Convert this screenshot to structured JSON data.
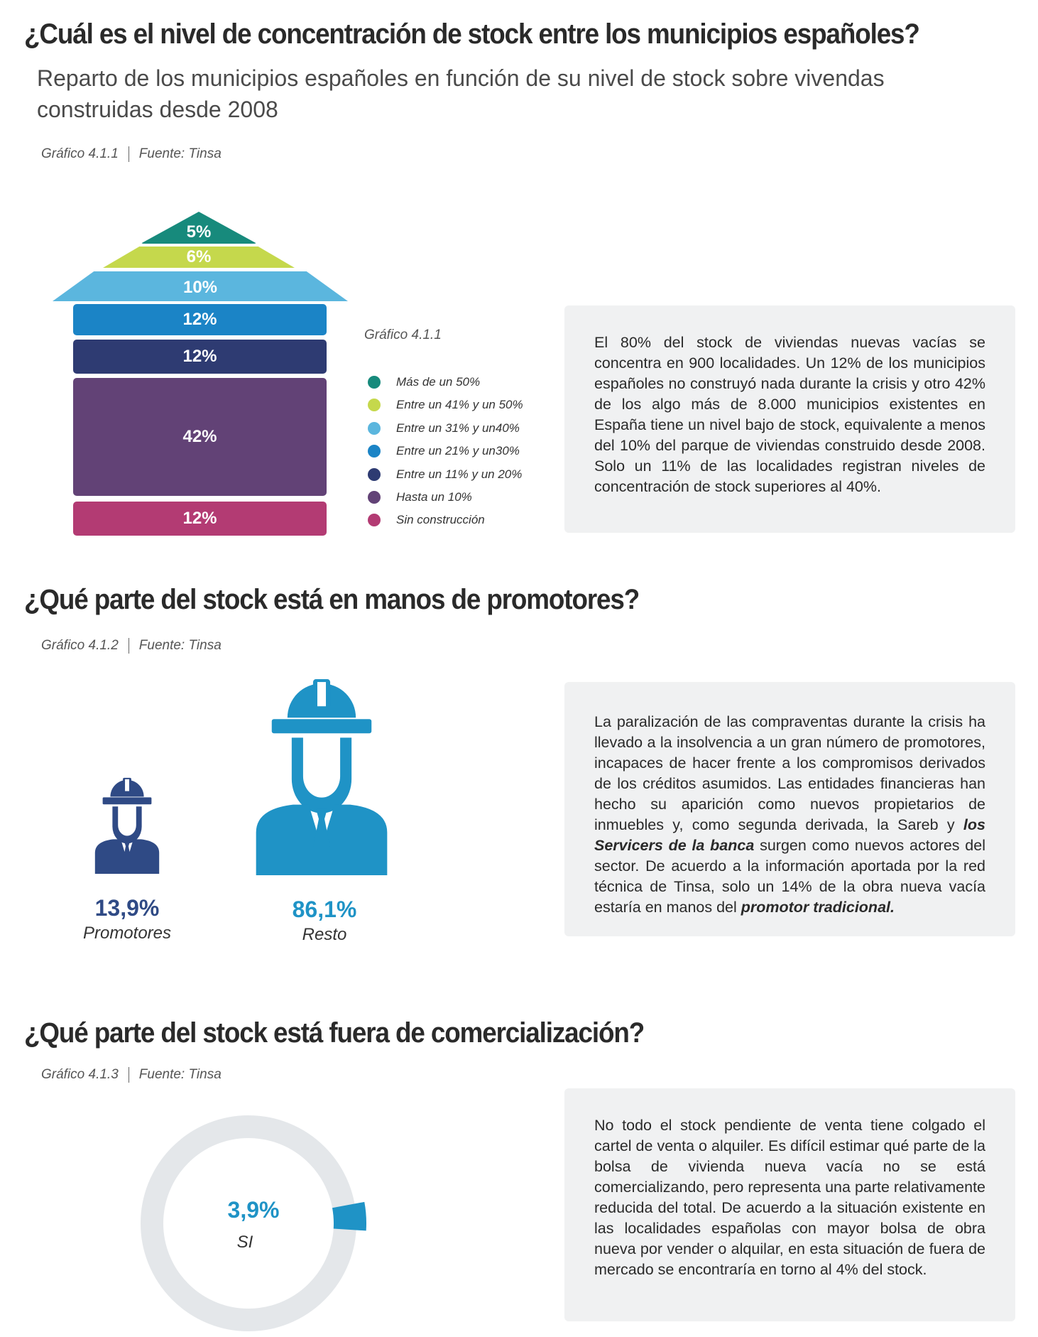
{
  "section1": {
    "title": "¿Cuál es el nivel de concentración de stock entre los municipios españoles?",
    "subtitle": "Reparto de los municipios españoles en función de su nivel de stock sobre vivendas construidas desde 2008",
    "source_chart": "Gráfico 4.1.1",
    "source_label": "Fuente: Tinsa",
    "legend_title": "Gráfico 4.1.1",
    "body": "El 80% del stock de viviendas nuevas vacías se concentra en 900 localidades. Un 12% de los municipios españoles no construyó nada durante la crisis y otro 42% de los algo más de 8.000 municipios existentes en España tiene un nivel bajo de stock, equivalente a menos del 10% del parque de viviendas construido desde 2008. Solo un 11% de las localidades registran niveles de concentración de stock superiores al 40%."
  },
  "section2": {
    "title": "¿Qué parte del stock está en manos de promotores?",
    "source_chart": "Gráfico 4.1.2",
    "source_label": "Fuente: Tinsa",
    "body_1": "La paralización de las compraventas durante la crisis ha llevado a la insolvencia a un gran número de promotores, incapaces de hacer frente a los compromisos derivados de los créditos asumidos. Las entidades financieras han hecho su aparición como nuevos propietarios de inmuebles y, como segunda derivada, la Sareb y ",
    "body_em_1": "los Servicers de la banca",
    "body_2": " surgen como nuevos actores del sector. De acuerdo a la información aportada por la red técnica de Tinsa, solo un 14% de la obra nueva vacía estaría en manos del ",
    "body_em_2": "promotor tradicional."
  },
  "section3": {
    "title": "¿Qué parte del stock está fuera de comercialización?",
    "source_chart": "Gráfico 4.1.3",
    "source_label": "Fuente: Tinsa",
    "body": "No todo el stock pendiente de venta tiene colgado el cartel de venta o alquiler. Es difícil estimar qué parte de la bolsa de vivienda nueva vacía no se está comercializando, pero representa una parte relativamente reducida del total. De acuerdo a la situación existente en las localidades españolas con mayor bolsa de obra nueva por vender o alquilar, en esta situación de fuera de mercado se encontraría en torno al 4% del stock."
  },
  "colors": {
    "teal": "#178a7c",
    "lime": "#c5d84c",
    "light_blue": "#5bb6de",
    "blue": "#1b84c6",
    "navy": "#2e3b72",
    "purple": "#624276",
    "magenta": "#b33b73",
    "promoter_navy": "#2f4a85",
    "resto_blue": "#1f93c6",
    "ring_grey": "#e4e7ea"
  },
  "chart_data": [
    {
      "type": "bar",
      "title": "",
      "categories": [
        "Más de un 50%",
        "Entre  un 41% y un 50%",
        "Entre  un 31% y un40%",
        "Entre  un 21% y un30%",
        "Entre  un 11% y un 20%",
        "Hasta un 10%",
        "Sin construcción"
      ],
      "values": [
        5,
        6,
        10,
        12,
        12,
        42,
        12
      ],
      "labels": [
        "5%",
        "6%",
        "10%",
        "12%",
        "12%",
        "42%",
        "12%"
      ],
      "colors": [
        "#178a7c",
        "#c5d84c",
        "#5bb6de",
        "#1b84c6",
        "#2e3b72",
        "#624276",
        "#b33b73"
      ],
      "legend": "right"
    },
    {
      "type": "bar",
      "categories": [
        "Promotores",
        "Resto"
      ],
      "values": [
        13.9,
        86.1
      ],
      "labels": [
        "13,9%",
        "86,1%"
      ],
      "icon": "construction-worker-icon"
    },
    {
      "type": "pie",
      "slices": [
        {
          "name": "SI",
          "value": 3.9,
          "label": "3,9%",
          "color": "#1f93c6"
        },
        {
          "value": 96.1,
          "color": "#e4e7ea"
        }
      ]
    }
  ]
}
